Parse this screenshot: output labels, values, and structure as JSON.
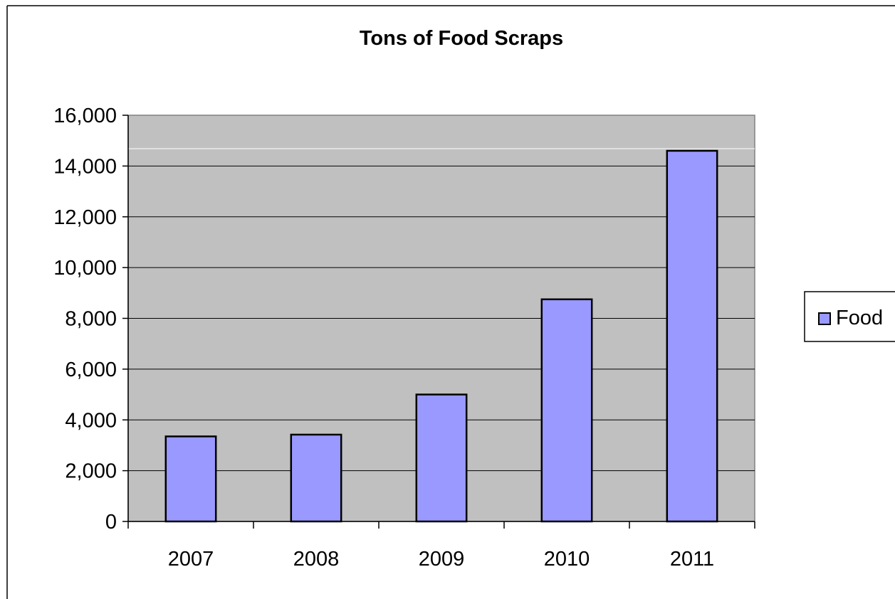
{
  "chart_data": {
    "type": "bar",
    "title": "Tons of Food Scraps",
    "xlabel": "",
    "ylabel": "",
    "categories": [
      "2007",
      "2008",
      "2009",
      "2010",
      "2011"
    ],
    "series": [
      {
        "name": "Food",
        "values": [
          3350,
          3420,
          5000,
          8750,
          14600
        ]
      }
    ],
    "y_ticks": [
      "0",
      "2,000",
      "4,000",
      "6,000",
      "8,000",
      "10,000",
      "12,000",
      "14,000",
      "16,000"
    ],
    "ylim": [
      0,
      16000
    ],
    "y_step": 2000,
    "grid": true,
    "legend_position": "right",
    "colors": {
      "plot_background": "#c0c0c0",
      "bar_fill": "#9999ff",
      "bar_stroke": "#000000",
      "gridline": "#000000",
      "axis": "#808080"
    }
  }
}
